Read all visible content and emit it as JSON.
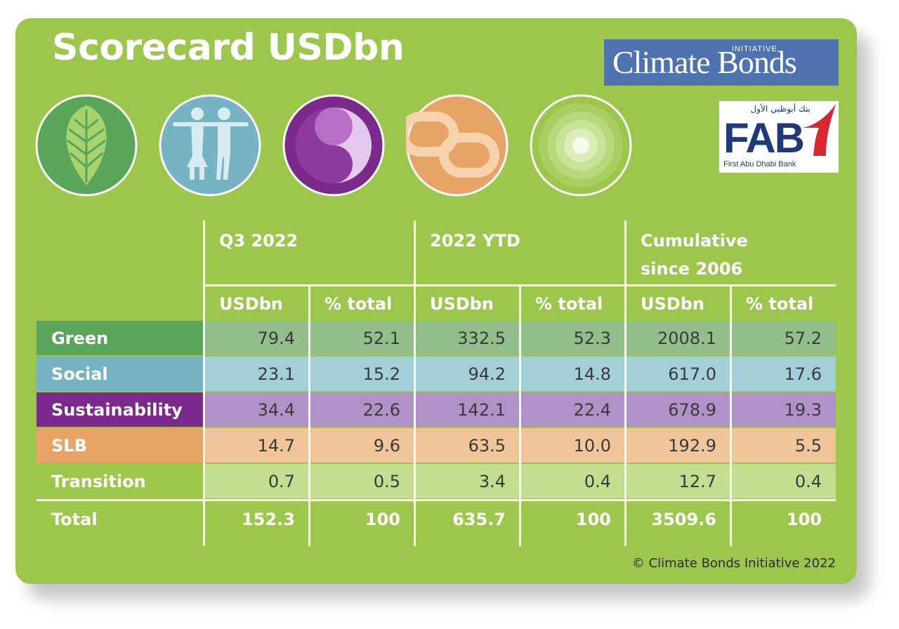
{
  "title": "Scorecard USDbn",
  "logos": {
    "cbi_text": "Climate Bonds",
    "cbi_initiative": "INITIATIVE",
    "fab_arabic": "بنك أبوظبي الأول",
    "fab_text": "FAB",
    "fab_subtitle": "First Abu Dhabi Bank"
  },
  "icons": [
    "leaf-icon",
    "people-icon",
    "yin-yang-icon",
    "chain-link-icon",
    "target-icon"
  ],
  "table": {
    "groups": [
      {
        "label": "Q3 2022",
        "line2": ""
      },
      {
        "label": "2022 YTD",
        "line2": ""
      },
      {
        "label": "Cumulative",
        "line2": "since 2006"
      }
    ],
    "subheaders": [
      "USDbn",
      "% total",
      "USDbn",
      "% total",
      "USDbn",
      "% total"
    ],
    "rows": [
      {
        "label": "Green",
        "values": [
          "79.4",
          "52.1",
          "332.5",
          "52.3",
          "2008.1",
          "57.2"
        ],
        "label_bg": "#5ba55a",
        "cell_bg": "#93bd8a"
      },
      {
        "label": "Social",
        "values": [
          "23.1",
          "15.2",
          "94.2",
          "14.8",
          "617.0",
          "17.6"
        ],
        "label_bg": "#76b4c3",
        "cell_bg": "#a3cfd8"
      },
      {
        "label": "Sustainability",
        "values": [
          "34.4",
          "22.6",
          "142.1",
          "22.4",
          "678.9",
          "19.3"
        ],
        "label_bg": "#7b2a8c",
        "cell_bg": "#b192c8"
      },
      {
        "label": "SLB",
        "values": [
          "14.7",
          "9.6",
          "63.5",
          "10.0",
          "192.9",
          "5.5"
        ],
        "label_bg": "#e8a466",
        "cell_bg": "#f1c59a"
      },
      {
        "label": "Transition",
        "values": [
          "0.7",
          "0.5",
          "3.4",
          "0.4",
          "12.7",
          "0.4"
        ],
        "label_bg": "#9dc64c",
        "cell_bg": "#c3de90"
      }
    ],
    "total": {
      "label": "Total",
      "values": [
        "152.3",
        "100",
        "635.7",
        "100",
        "3509.6",
        "100"
      ]
    }
  },
  "footer": "© Climate Bonds Initiative 2022",
  "colors": {
    "background": "#9dc64c",
    "cbi_blue": "#4f72b1",
    "fab_navy": "#1e3a78",
    "fab_red": "#d7282f"
  }
}
